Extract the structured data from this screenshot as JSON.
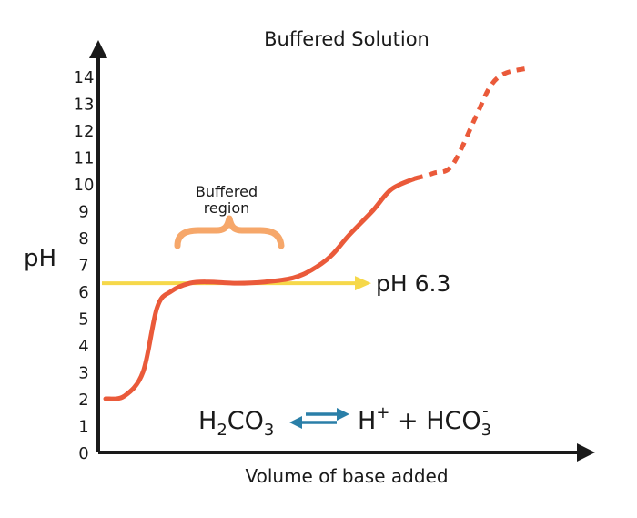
{
  "chart_data": {
    "type": "line",
    "title": "Buffered Solution",
    "xlabel": "Volume of base added",
    "ylabel": "pH",
    "ylim": [
      0,
      14
    ],
    "yticks": [
      "0",
      "1",
      "2",
      "3",
      "4",
      "5",
      "6",
      "7",
      "8",
      "9",
      "10",
      "11",
      "12",
      "13",
      "14"
    ],
    "grid": false,
    "series": [
      {
        "style": "solid",
        "color": "#ea5a3a",
        "x": [
          0,
          2,
          4,
          5.5,
          7,
          9,
          11,
          14,
          17,
          20,
          22,
          24,
          26,
          28.5,
          30.5,
          33
        ],
        "y": [
          2.0,
          2.1,
          3.0,
          5.4,
          6.0,
          6.3,
          6.35,
          6.3,
          6.35,
          6.5,
          6.8,
          7.3,
          8.1,
          9.0,
          9.8,
          10.2
        ]
      },
      {
        "style": "dotted",
        "color": "#ea5a3a",
        "x": [
          33,
          35,
          37,
          39.5,
          41,
          42.5,
          45
        ],
        "y": [
          10.2,
          10.4,
          10.7,
          12.5,
          13.6,
          14.1,
          14.3
        ]
      }
    ],
    "reference_line": {
      "y": 6.3,
      "label": "pH 6.3",
      "color": "#f6d84a"
    },
    "annotation": {
      "label_line1": "Buffered",
      "label_line2": "region",
      "color": "#f6a76a",
      "x_start": 7,
      "x_end": 17
    },
    "equation": {
      "left": "H",
      "left_sub": "2",
      "left_rest": "CO",
      "left_sub2": "3",
      "right_h": "H",
      "right_h_sup": "+",
      "plus": " + HCO",
      "right_sub": "3",
      "right_sup": "-",
      "arrow_color": "#2a7fa8"
    }
  }
}
